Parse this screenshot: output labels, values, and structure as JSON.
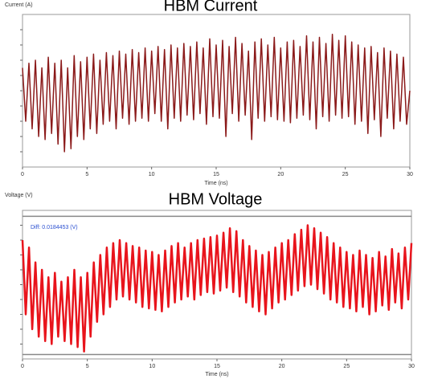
{
  "chart_data": [
    {
      "type": "line",
      "title": "HBM Current",
      "y_label": "Current (A)",
      "x_label": "Time (ns)",
      "color": "#8b1a1a",
      "xlim": [
        0,
        30
      ],
      "ylim": [
        0,
        10
      ],
      "xticks": [
        0,
        5,
        10,
        15,
        20,
        25,
        30
      ],
      "x": [
        0,
        0.25,
        0.5,
        0.75,
        1,
        1.25,
        1.5,
        1.75,
        2,
        2.25,
        2.5,
        2.75,
        3,
        3.25,
        3.5,
        3.75,
        4,
        4.25,
        4.5,
        4.75,
        5,
        5.25,
        5.5,
        5.75,
        6,
        6.25,
        6.5,
        6.75,
        7,
        7.25,
        7.5,
        7.75,
        8,
        8.25,
        8.5,
        8.75,
        9,
        9.25,
        9.5,
        9.75,
        10,
        10.25,
        10.5,
        10.75,
        11,
        11.25,
        11.5,
        11.75,
        12,
        12.25,
        12.5,
        12.75,
        13,
        13.25,
        13.5,
        13.75,
        14,
        14.25,
        14.5,
        14.75,
        15,
        15.25,
        15.5,
        15.75,
        16,
        16.25,
        16.5,
        16.75,
        17,
        17.25,
        17.5,
        17.75,
        18,
        18.25,
        18.5,
        18.75,
        19,
        19.25,
        19.5,
        19.75,
        20,
        20.25,
        20.5,
        20.75,
        21,
        21.25,
        21.5,
        21.75,
        22,
        22.25,
        22.5,
        22.75,
        23,
        23.25,
        23.5,
        23.75,
        24,
        24.25,
        24.5,
        24.75,
        25,
        25.25,
        25.5,
        25.75,
        26,
        26.25,
        26.5,
        26.75,
        27,
        27.25,
        27.5,
        27.75,
        28,
        28.25,
        28.5,
        28.75,
        29,
        29.25,
        29.5,
        29.75,
        30
      ],
      "values": [
        6.5,
        3.0,
        6.8,
        2.5,
        7.0,
        2.0,
        6.5,
        1.8,
        7.2,
        2.2,
        6.8,
        1.5,
        7.0,
        1.0,
        6.5,
        1.2,
        7.3,
        2.0,
        6.9,
        1.8,
        7.2,
        2.5,
        7.4,
        2.2,
        7.0,
        2.8,
        7.5,
        3.0,
        7.3,
        2.5,
        7.6,
        3.2,
        7.4,
        2.8,
        7.7,
        3.0,
        7.5,
        3.2,
        7.8,
        3.0,
        7.6,
        3.5,
        7.9,
        3.0,
        7.7,
        2.5,
        8.0,
        3.2,
        7.8,
        3.0,
        8.1,
        3.4,
        7.9,
        3.1,
        8.2,
        3.5,
        7.8,
        2.8,
        8.4,
        3.3,
        8.0,
        3.2,
        8.3,
        2.0,
        7.9,
        3.5,
        8.5,
        3.0,
        8.1,
        3.4,
        7.6,
        1.8,
        8.2,
        3.2,
        8.4,
        3.0,
        8.0,
        3.3,
        8.5,
        3.1,
        7.8,
        3.0,
        8.2,
        2.9,
        8.3,
        3.2,
        7.9,
        3.4,
        8.6,
        3.1,
        8.2,
        2.5,
        8.5,
        3.3,
        8.1,
        3.0,
        8.7,
        3.4,
        8.3,
        3.2,
        8.6,
        3.3,
        8.2,
        2.8,
        8.0,
        3.0,
        7.8,
        2.2,
        7.9,
        3.1,
        7.5,
        2.0,
        7.8,
        3.2,
        7.6,
        2.5,
        7.4,
        3.0,
        7.2,
        2.8,
        5.0
      ]
    },
    {
      "type": "line",
      "title": "HBM Voltage",
      "y_label": "Voltage (V)",
      "x_label": "Time (ns)",
      "annotation": "Diff: 0.0184453 (V)",
      "color": "#e8141c",
      "xlim": [
        0,
        30
      ],
      "ylim": [
        0,
        10
      ],
      "xticks": [
        0,
        5,
        10,
        15,
        20,
        25,
        30
      ],
      "cursor_lines": [
        9.6,
        0.3
      ],
      "x": [
        0,
        0.25,
        0.5,
        0.75,
        1,
        1.25,
        1.5,
        1.75,
        2,
        2.25,
        2.5,
        2.75,
        3,
        3.25,
        3.5,
        3.75,
        4,
        4.25,
        4.5,
        4.75,
        5,
        5.25,
        5.5,
        5.75,
        6,
        6.25,
        6.5,
        6.75,
        7,
        7.25,
        7.5,
        7.75,
        8,
        8.25,
        8.5,
        8.75,
        9,
        9.25,
        9.5,
        9.75,
        10,
        10.25,
        10.5,
        10.75,
        11,
        11.25,
        11.5,
        11.75,
        12,
        12.25,
        12.5,
        12.75,
        13,
        13.25,
        13.5,
        13.75,
        14,
        14.25,
        14.5,
        14.75,
        15,
        15.25,
        15.5,
        15.75,
        16,
        16.25,
        16.5,
        16.75,
        17,
        17.25,
        17.5,
        17.75,
        18,
        18.25,
        18.5,
        18.75,
        19,
        19.25,
        19.5,
        19.75,
        20,
        20.25,
        20.5,
        20.75,
        21,
        21.25,
        21.5,
        21.75,
        22,
        22.25,
        22.5,
        22.75,
        23,
        23.25,
        23.5,
        23.75,
        24,
        24.25,
        24.5,
        24.75,
        25,
        25.25,
        25.5,
        25.75,
        26,
        26.25,
        26.5,
        26.75,
        27,
        27.25,
        27.5,
        27.75,
        28,
        28.25,
        28.5,
        28.75,
        29,
        29.25,
        29.5,
        29.75,
        30
      ],
      "values": [
        8.0,
        3.0,
        7.5,
        2.0,
        6.5,
        1.5,
        6.0,
        1.2,
        5.5,
        1.0,
        5.8,
        1.5,
        5.2,
        1.2,
        5.5,
        1.0,
        6.0,
        0.8,
        5.5,
        0.5,
        5.8,
        1.5,
        6.5,
        2.5,
        7.0,
        3.0,
        7.5,
        3.5,
        7.8,
        4.0,
        8.0,
        4.2,
        7.8,
        4.0,
        7.6,
        3.8,
        7.5,
        3.5,
        7.3,
        3.4,
        7.2,
        3.3,
        7.0,
        3.2,
        7.3,
        3.5,
        7.6,
        3.8,
        7.8,
        4.0,
        7.5,
        4.2,
        7.8,
        4.0,
        8.0,
        4.3,
        8.1,
        4.5,
        8.2,
        4.4,
        8.3,
        4.6,
        8.5,
        4.8,
        8.8,
        4.5,
        8.6,
        4.2,
        8.0,
        3.8,
        7.6,
        3.5,
        7.3,
        3.2,
        7.0,
        3.0,
        7.2,
        3.4,
        7.5,
        3.8,
        7.8,
        4.0,
        8.0,
        4.3,
        8.4,
        4.6,
        8.7,
        4.9,
        9.0,
        5.0,
        8.8,
        4.7,
        8.5,
        4.4,
        8.2,
        4.0,
        7.8,
        3.8,
        7.5,
        3.5,
        7.2,
        3.4,
        7.0,
        3.2,
        7.3,
        3.5,
        7.0,
        3.0,
        6.8,
        3.2,
        7.2,
        3.6,
        6.9,
        3.3,
        7.4,
        3.8,
        7.1,
        3.4,
        7.5,
        4.0,
        7.8
      ]
    }
  ]
}
